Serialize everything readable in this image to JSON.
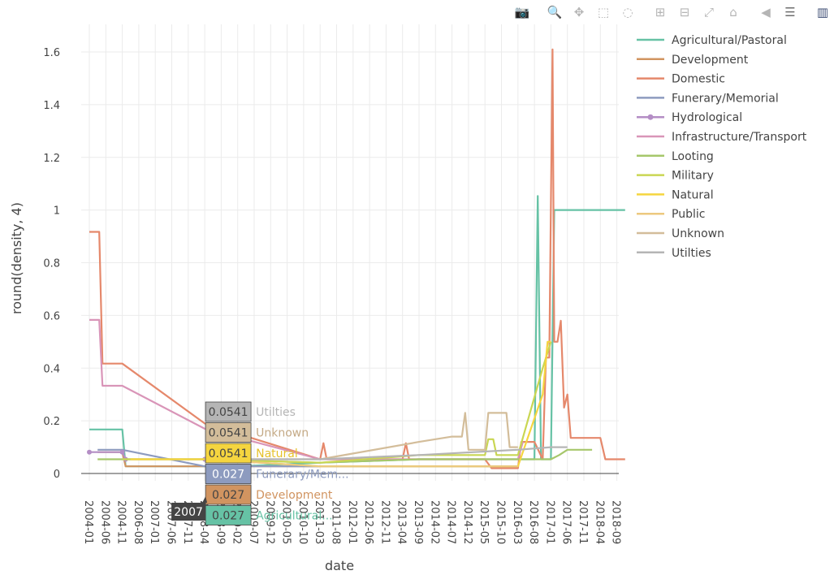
{
  "modebar": {
    "buttons": [
      {
        "icon": "camera-icon",
        "glyph": "📷",
        "group": 0
      },
      {
        "icon": "zoom-icon",
        "glyph": "🔍",
        "group": 1,
        "active": true
      },
      {
        "icon": "pan-icon",
        "glyph": "✥",
        "group": 1
      },
      {
        "icon": "box-select-icon",
        "glyph": "⬚",
        "group": 1
      },
      {
        "icon": "lasso-icon",
        "glyph": "◌",
        "group": 1
      },
      {
        "icon": "zoom-in-icon",
        "glyph": "⊞",
        "group": 2
      },
      {
        "icon": "zoom-out-icon",
        "glyph": "⊟",
        "group": 2
      },
      {
        "icon": "autoscale-icon",
        "glyph": "⤢",
        "group": 2
      },
      {
        "icon": "home-icon",
        "glyph": "⌂",
        "group": 2
      },
      {
        "icon": "spike-lines-icon",
        "glyph": "◀",
        "group": 3
      },
      {
        "icon": "compare-hover-icon",
        "glyph": "☰",
        "group": 3,
        "active": true
      },
      {
        "icon": "plotly-logo-icon",
        "glyph": "▥",
        "group": 4
      }
    ]
  },
  "chart_data": {
    "type": "line",
    "xlabel": "date",
    "ylabel": "round(density, 4)",
    "ylim": [
      -0.03,
      1.7
    ],
    "yticks": [
      0,
      0.2,
      0.4,
      0.6,
      0.8,
      1,
      1.2,
      1.4,
      1.6
    ],
    "ytick_labels": [
      "0",
      "0.2",
      "0.4",
      "0.6",
      "0.8",
      "1",
      "1.2",
      "1.4",
      "1.6"
    ],
    "xticks": [
      "2004-01",
      "2004-06",
      "2004-11",
      "2006-08",
      "2007-01",
      "2007-06",
      "2007-11",
      "2008-04",
      "2008-09",
      "2009-02",
      "2009-07",
      "2009-12",
      "2010-05",
      "2010-10",
      "2011-03",
      "2011-08",
      "2012-01",
      "2012-06",
      "2012-11",
      "2013-04",
      "2013-09",
      "2014-02",
      "2014-07",
      "2014-12",
      "2015-05",
      "2015-10",
      "2016-03",
      "2016-08",
      "2017-01",
      "2017-06",
      "2017-11",
      "2018-04",
      "2018-09"
    ],
    "grid": true,
    "legend_position": "right",
    "series": [
      {
        "name": "Agricultural/Pastoral",
        "color": "#66c2a5",
        "points": [
          [
            0,
            0.167
          ],
          [
            1,
            0.167
          ],
          [
            2,
            0.167
          ],
          [
            2.2,
            0.027
          ],
          [
            7,
            0.027
          ],
          [
            9,
            0.027
          ],
          [
            14,
            0.041
          ],
          [
            20,
            0.054
          ],
          [
            26,
            0.054
          ],
          [
            27,
            0.054
          ],
          [
            27.2,
            1.053
          ],
          [
            27.4,
            0.054
          ],
          [
            28,
            0.054
          ],
          [
            28.2,
            1.0
          ],
          [
            29,
            1.0
          ],
          [
            32.5,
            1.0
          ]
        ]
      },
      {
        "name": "Development",
        "color": "#d19460",
        "points": [
          [
            0.5,
            0.081
          ],
          [
            2,
            0.081
          ],
          [
            2.2,
            0.027
          ],
          [
            7,
            0.027
          ],
          [
            14,
            0.027
          ],
          [
            20,
            0.027
          ],
          [
            26,
            0.027
          ]
        ]
      },
      {
        "name": "Domestic",
        "color": "#e5886b",
        "points": [
          [
            0,
            0.917
          ],
          [
            0.6,
            0.917
          ],
          [
            0.8,
            0.417
          ],
          [
            2,
            0.417
          ],
          [
            7,
            0.19
          ],
          [
            14,
            0.054
          ],
          [
            14.2,
            0.115
          ],
          [
            14.4,
            0.054
          ],
          [
            18,
            0.054
          ],
          [
            19,
            0.054
          ],
          [
            19.2,
            0.115
          ],
          [
            19.4,
            0.054
          ],
          [
            23,
            0.054
          ],
          [
            24,
            0.054
          ],
          [
            24.4,
            0.02
          ],
          [
            26,
            0.02
          ],
          [
            26.2,
            0.12
          ],
          [
            27,
            0.12
          ],
          [
            27.5,
            0.054
          ],
          [
            27.7,
            0.44
          ],
          [
            27.9,
            0.44
          ],
          [
            28.1,
            1.61
          ],
          [
            28.2,
            0.5
          ],
          [
            28.4,
            0.5
          ],
          [
            28.6,
            0.58
          ],
          [
            28.8,
            0.25
          ],
          [
            29,
            0.3
          ],
          [
            29.2,
            0.135
          ],
          [
            31,
            0.135
          ],
          [
            31.3,
            0.054
          ],
          [
            32.5,
            0.054
          ]
        ]
      },
      {
        "name": "Funerary/Memorial",
        "color": "#8d9bbf",
        "points": [
          [
            0.5,
            0.09
          ],
          [
            2,
            0.09
          ],
          [
            7,
            0.027
          ],
          [
            14,
            0.027
          ],
          [
            20,
            0.027
          ],
          [
            26,
            0.027
          ]
        ]
      },
      {
        "name": "Hydrological",
        "color": "#b48ec5",
        "marker": true,
        "points": [
          [
            0,
            0.081
          ],
          [
            2,
            0.081
          ],
          [
            2.2,
            0.054
          ],
          [
            7,
            0.054
          ]
        ]
      },
      {
        "name": "Infrastructure/Transport",
        "color": "#d995b8",
        "points": [
          [
            0,
            0.583
          ],
          [
            0.6,
            0.583
          ],
          [
            0.8,
            0.333
          ],
          [
            2,
            0.333
          ],
          [
            7,
            0.17
          ],
          [
            14,
            0.054
          ],
          [
            20,
            0.054
          ],
          [
            26,
            0.054
          ],
          [
            26.3,
            0.12
          ]
        ]
      },
      {
        "name": "Looting",
        "color": "#a6c76b",
        "points": [
          [
            0.5,
            0.054
          ],
          [
            2,
            0.054
          ],
          [
            7,
            0.054
          ],
          [
            14,
            0.041
          ],
          [
            20,
            0.054
          ],
          [
            25,
            0.054
          ],
          [
            27,
            0.054
          ],
          [
            28,
            0.054
          ],
          [
            28.5,
            0.07
          ],
          [
            29,
            0.09
          ],
          [
            30.5,
            0.09
          ]
        ]
      },
      {
        "name": "Military",
        "color": "#c9d652",
        "points": [
          [
            2,
            0.054
          ],
          [
            7,
            0.054
          ],
          [
            14,
            0.041
          ],
          [
            20,
            0.07
          ],
          [
            24,
            0.07
          ],
          [
            24.2,
            0.13
          ],
          [
            24.5,
            0.13
          ],
          [
            24.7,
            0.07
          ],
          [
            26,
            0.07
          ],
          [
            27.5,
            0.4
          ],
          [
            28,
            0.5
          ]
        ]
      },
      {
        "name": "Natural",
        "color": "#f5d53f",
        "points": [
          [
            2.5,
            0.054
          ],
          [
            7,
            0.054
          ],
          [
            14,
            0.027
          ],
          [
            20,
            0.027
          ],
          [
            26,
            0.027
          ],
          [
            27.5,
            0.3
          ],
          [
            27.8,
            0.5
          ],
          [
            28,
            0.5
          ]
        ]
      },
      {
        "name": "Public",
        "color": "#ecc97f",
        "points": [
          [
            7,
            0.054
          ],
          [
            14,
            0.027
          ],
          [
            20,
            0.027
          ],
          [
            26,
            0.027
          ]
        ]
      },
      {
        "name": "Unknown",
        "color": "#d3bd9a",
        "points": [
          [
            7,
            0.054
          ],
          [
            14,
            0.054
          ],
          [
            20,
            0.12
          ],
          [
            22,
            0.14
          ],
          [
            22.6,
            0.14
          ],
          [
            22.8,
            0.23
          ],
          [
            23,
            0.09
          ],
          [
            24,
            0.09
          ],
          [
            24.2,
            0.23
          ],
          [
            25.3,
            0.23
          ],
          [
            25.5,
            0.1
          ],
          [
            26,
            0.1
          ]
        ]
      },
      {
        "name": "Utilties",
        "color": "#b5b5b5",
        "points": [
          [
            7,
            0.054
          ],
          [
            14,
            0.054
          ],
          [
            20,
            0.07
          ],
          [
            26,
            0.09
          ],
          [
            28,
            0.1
          ],
          [
            29,
            0.1
          ]
        ]
      }
    ],
    "hover": {
      "x_label": "2007",
      "x_index": 7,
      "items": [
        {
          "value": "0.0541",
          "name": "Utilties",
          "color": "#b5b5b5",
          "text_color": "#444444",
          "name_color": "#b5b5b5"
        },
        {
          "value": "0.0541",
          "name": "Unknown",
          "color": "#d3bd9a",
          "text_color": "#444444",
          "name_color": "#c4a985"
        },
        {
          "value": "0.0541",
          "name": "Natural",
          "color": "#f5d53f",
          "text_color": "#444444",
          "name_color": "#e6c22c"
        },
        {
          "value": "0.027",
          "name": "Funerary/Mem...",
          "color": "#8d9bbf",
          "text_color": "#ffffff",
          "name_color": "#8d9bbf"
        },
        {
          "value": "0.027",
          "name": "Development",
          "color": "#d19460",
          "text_color": "#444444",
          "name_color": "#d19460"
        },
        {
          "value": "0.027",
          "name": "Agricultural...",
          "color": "#66c2a5",
          "text_color": "#444444",
          "name_color": "#66c2a5"
        }
      ]
    }
  }
}
